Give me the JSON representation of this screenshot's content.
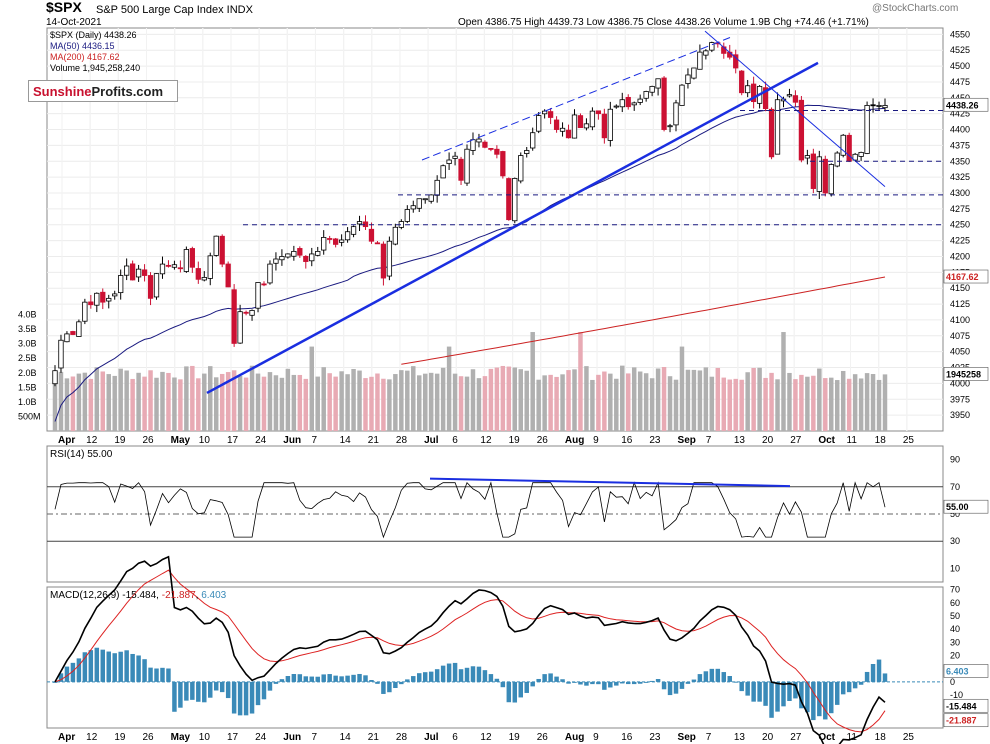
{
  "header": {
    "symbol": "$SPX",
    "name": "S&P 500 Large Cap Index INDX",
    "date": "14-Oct-2021",
    "quote": "Open 4386.75  High 4439.73  Low 4386.75  Close 4438.26  Volume 1.9B  Chg +74.46 (+1.71%)",
    "watermark": "@StockCharts.com"
  },
  "legend": {
    "price": "$SPX (Daily) 4438.26",
    "ma50": "MA(50) 4436.15",
    "ma200": "MA(200) 4167.62",
    "volume": "Volume 1,945,258,240"
  },
  "logo": {
    "part1": "Sunshine",
    "part2": "Profits",
    "part3": ".com"
  },
  "badges": {
    "price": "4438.26",
    "ma200": "4167.62",
    "volume": "1945258",
    "rsi": "55.00",
    "macd_hist": "6.403",
    "macd": "-15.484",
    "signal": "-21.887"
  },
  "rsi_label": "RSI(14) 55.00",
  "macd_label": {
    "name": "MACD(12,26,9)",
    "macd": "-15.484",
    "signal": "-21.887",
    "hist": "6.403"
  },
  "colors": {
    "up": "#000000",
    "down": "#cc1133",
    "ma50": "#1a1a80",
    "ma200": "#cc2222",
    "trend": "#1a2ee0",
    "vol_up": "#b0b0b0",
    "vol_down": "#e8aab4",
    "hist": "#3a8ab8"
  },
  "axes": {
    "x_ticks": [
      "Apr",
      "12",
      "19",
      "26",
      "May",
      "10",
      "17",
      "24",
      "Jun",
      "7",
      "14",
      "21",
      "28",
      "Jul",
      "6",
      "12",
      "19",
      "26",
      "Aug",
      "9",
      "16",
      "23",
      "Sep",
      "7",
      "13",
      "20",
      "27",
      "Oct",
      "11",
      "18",
      "25"
    ],
    "price_ticks": [
      "4550",
      "4525",
      "4500",
      "4475",
      "4450",
      "4425",
      "4400",
      "4375",
      "4350",
      "4325",
      "4300",
      "4275",
      "4250",
      "4225",
      "4200",
      "4175",
      "4150",
      "4125",
      "4100",
      "4075",
      "4050",
      "4025",
      "4000",
      "3975",
      "3950"
    ],
    "volume_ticks": [
      "4.0B",
      "3.5B",
      "3.0B",
      "2.5B",
      "2.0B",
      "1.5B",
      "1.0B",
      "500M"
    ],
    "rsi_ticks": [
      "90",
      "70",
      "50",
      "30",
      "10"
    ],
    "macd_ticks": [
      "70",
      "60",
      "50",
      "40",
      "30",
      "20",
      "10",
      "0",
      "-10",
      "-20",
      "-30"
    ]
  },
  "chart_data": {
    "type": "candlestick",
    "price": {
      "days": 140,
      "ylim": [
        3925,
        4560
      ],
      "closes": [
        4020,
        4068,
        4078,
        4077,
        4097,
        4128,
        4124,
        4142,
        4128,
        4134,
        4141,
        4170,
        4185,
        4163,
        4180,
        4170,
        4134,
        4173,
        4188,
        4186,
        4187,
        4181,
        4211,
        4183,
        4164,
        4167,
        4201,
        4232,
        4188,
        4152,
        4063,
        4113,
        4112,
        4115,
        4159,
        4156,
        4188,
        4196,
        4200,
        4204,
        4208,
        4202,
        4192,
        4204,
        4208,
        4230,
        4227,
        4219,
        4226,
        4239,
        4247,
        4255,
        4247,
        4224,
        4221,
        4166,
        4224,
        4246,
        4255,
        4274,
        4280,
        4291,
        4291,
        4297,
        4320,
        4343,
        4352,
        4358,
        4320,
        4369,
        4384,
        4385,
        4372,
        4369,
        4361,
        4327,
        4258,
        4323,
        4359,
        4367,
        4395,
        4422,
        4429,
        4419,
        4400,
        4402,
        4387,
        4423,
        4403,
        4409,
        4429,
        4425,
        4387,
        4432,
        4437,
        4447,
        4436,
        4442,
        4448,
        4460,
        4468,
        4480,
        4400,
        4406,
        4442,
        4470,
        4486,
        4497,
        4522,
        4524,
        4537,
        4535,
        4520,
        4514,
        4497,
        4458,
        4469,
        4444,
        4468,
        4433,
        4357,
        4447,
        4448,
        4455,
        4443,
        4352,
        4359,
        4307,
        4357,
        4300,
        4345,
        4363,
        4391,
        4350,
        4361,
        4364,
        4438,
        4438,
        4438,
        4438
      ],
      "ma50_end": 4436.15,
      "ma200_end": 4167.62,
      "last_close": 4438.26
    },
    "volume": {
      "ylim": [
        0,
        4500000000
      ],
      "last": 1945258240
    },
    "horizontal_levels": [
      4430,
      4350,
      4297,
      4250
    ],
    "rsi": {
      "ylim": [
        0,
        100
      ],
      "last": 55.0,
      "levels": [
        70,
        30
      ]
    },
    "macd": {
      "ylim": [
        -35,
        72
      ],
      "macd_last": -15.484,
      "signal_last": -21.887,
      "hist_last": 6.403
    }
  }
}
